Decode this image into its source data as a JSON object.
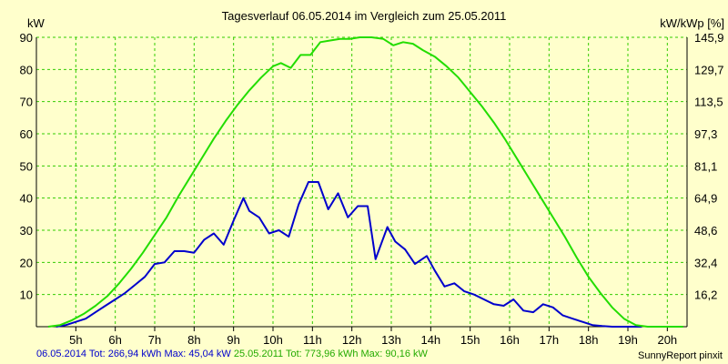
{
  "chart_data": {
    "type": "line",
    "title": "Tagesverlauf 06.05.2014 im Vergleich zum 25.05.2011",
    "ylabel_left": "kW",
    "ylabel_right": "kW/kWp [%]",
    "ylim": [
      0,
      90
    ],
    "y_ticks": [
      10,
      20,
      30,
      40,
      50,
      60,
      70,
      80,
      90
    ],
    "y_right_ticks": [
      "16,2",
      "32,4",
      "48,6",
      "64,9",
      "81,1",
      "97,3",
      "113,5",
      "129,7",
      "145,9"
    ],
    "xlim": [
      4.0,
      20.5
    ],
    "x_ticks": [
      5,
      6,
      7,
      8,
      9,
      10,
      11,
      12,
      13,
      14,
      15,
      16,
      17,
      18,
      19,
      20
    ],
    "x_tick_labels": [
      "5h",
      "6h",
      "7h",
      "8h",
      "9h",
      "10h",
      "11h",
      "12h",
      "13h",
      "14h",
      "15h",
      "16h",
      "17h",
      "18h",
      "19h",
      "20h"
    ],
    "grid": true,
    "series": [
      {
        "name": "06.05.2014",
        "color": "#0000cc",
        "x": [
          4.5,
          4.75,
          5.0,
          5.25,
          5.5,
          5.75,
          6.0,
          6.25,
          6.5,
          6.75,
          7.0,
          7.25,
          7.5,
          7.75,
          8.0,
          8.25,
          8.5,
          8.75,
          9.0,
          9.25,
          9.4,
          9.65,
          9.9,
          10.15,
          10.4,
          10.65,
          10.9,
          11.15,
          11.4,
          11.65,
          11.9,
          12.15,
          12.4,
          12.6,
          12.9,
          13.1,
          13.35,
          13.6,
          13.9,
          14.1,
          14.35,
          14.6,
          14.85,
          15.1,
          15.35,
          15.6,
          15.85,
          16.1,
          16.35,
          16.6,
          16.85,
          17.1,
          17.35,
          17.6,
          17.85,
          18.1,
          18.35,
          18.6,
          18.85,
          19.1,
          19.35
        ],
        "y": [
          0,
          0.5,
          1.5,
          2.5,
          4.5,
          6.5,
          8.5,
          10.5,
          13.0,
          15.5,
          19.5,
          20.0,
          23.5,
          23.5,
          23.0,
          27.0,
          29.0,
          25.5,
          33.0,
          40.0,
          36.0,
          34.0,
          29.0,
          30.0,
          28.0,
          38.0,
          45.0,
          45.0,
          36.5,
          41.5,
          34.0,
          37.5,
          37.5,
          21.0,
          31.0,
          26.5,
          24.0,
          19.5,
          22.0,
          17.5,
          12.5,
          13.5,
          11.0,
          10.0,
          8.5,
          7.0,
          6.5,
          8.5,
          5.0,
          4.5,
          7.0,
          6.0,
          3.5,
          2.5,
          1.5,
          0.5,
          0.2,
          0,
          0,
          0,
          0
        ]
      },
      {
        "name": "25.05.2011",
        "color": "#22dd00",
        "x": [
          4.3,
          4.6,
          4.9,
          5.2,
          5.5,
          5.8,
          6.1,
          6.4,
          6.7,
          7.0,
          7.3,
          7.6,
          7.9,
          8.2,
          8.5,
          8.8,
          9.1,
          9.4,
          9.7,
          10.0,
          10.2,
          10.45,
          10.7,
          10.95,
          11.2,
          11.45,
          11.7,
          11.95,
          12.2,
          12.5,
          12.8,
          13.05,
          13.3,
          13.55,
          13.8,
          14.1,
          14.4,
          14.7,
          15.0,
          15.3,
          15.6,
          15.9,
          16.2,
          16.5,
          16.8,
          17.1,
          17.4,
          17.7,
          18.0,
          18.3,
          18.6,
          18.9,
          19.2,
          19.5,
          19.8,
          20.1,
          20.4
        ],
        "y": [
          0,
          0.5,
          2.0,
          4.0,
          6.5,
          9.5,
          13.5,
          18.0,
          23.0,
          28.5,
          34.0,
          40.5,
          46.5,
          52.5,
          58.5,
          64.0,
          69.0,
          73.5,
          77.5,
          81.0,
          82.0,
          80.5,
          84.5,
          84.5,
          88.5,
          89.0,
          89.5,
          89.5,
          90.0,
          90.0,
          89.5,
          87.5,
          88.5,
          88.0,
          86.0,
          84.0,
          81.0,
          77.5,
          73.0,
          68.5,
          63.5,
          58.0,
          52.0,
          46.0,
          40.0,
          34.0,
          28.0,
          21.5,
          15.5,
          10.5,
          6.0,
          2.5,
          0.5,
          0,
          0,
          0,
          0
        ]
      }
    ]
  },
  "footer": {
    "series1_text": "06.05.2014 Tot: 266,94 kWh Max: 45,04 kW",
    "series2_text": "25.05.2011 Tot: 773,96 kWh Max: 90,16 kW",
    "credit": "SunnyReport pinxit"
  }
}
